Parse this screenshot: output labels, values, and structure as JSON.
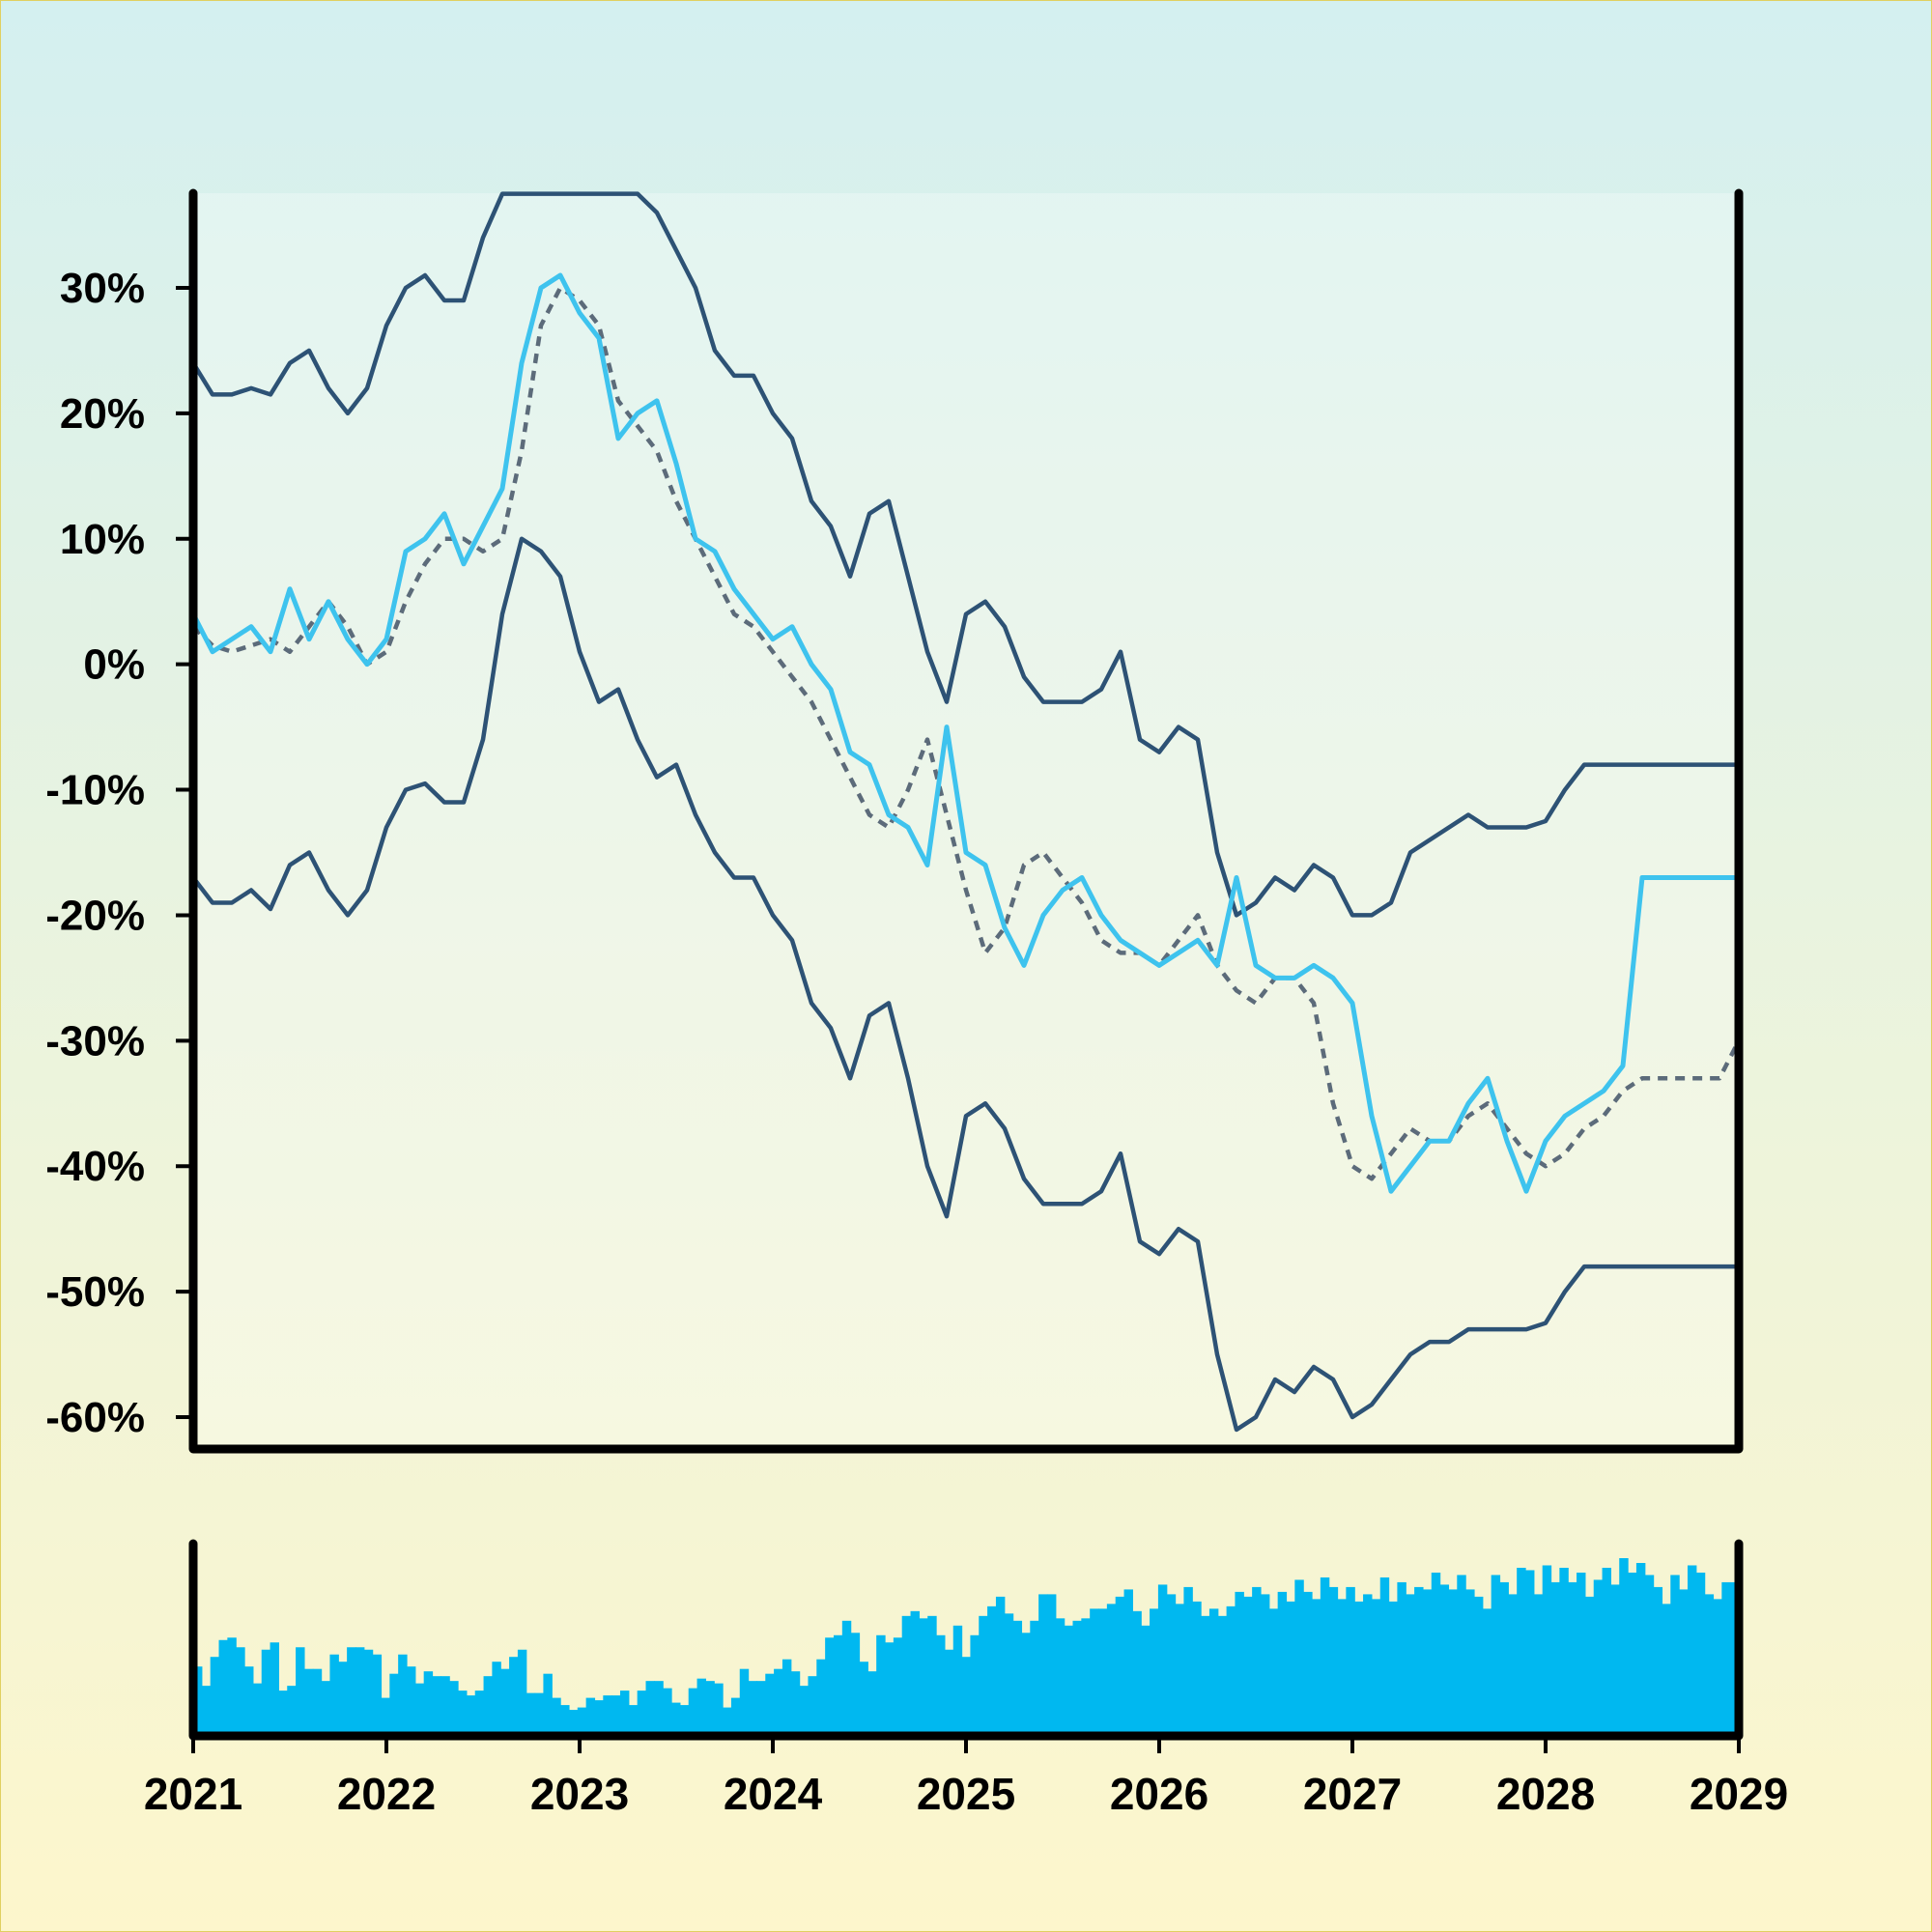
{
  "chart_data": {
    "type": "line",
    "title": "",
    "xlabel": "",
    "ylabel": "",
    "x_ticks": [
      "2021",
      "2022",
      "2023",
      "2024",
      "2025",
      "2026",
      "2027",
      "2028",
      "2029"
    ],
    "y_ticks": [
      "30%",
      "20%",
      "10%",
      "0%",
      "-10%",
      "-20%",
      "-30%",
      "-40%",
      "-50%",
      "-60%"
    ],
    "y_tick_values": [
      30,
      20,
      10,
      0,
      -10,
      -20,
      -30,
      -40,
      -50,
      -60
    ],
    "xlim": [
      2021,
      2029
    ],
    "ylim": [
      -62,
      37.5
    ],
    "grid": false,
    "upper_band_cap": 37.5,
    "series": [
      {
        "role": "price",
        "style": "solid",
        "color": "#3ec3ee",
        "x": [
          2021.0,
          2021.1,
          2021.2,
          2021.3,
          2021.4,
          2021.5,
          2021.6,
          2021.7,
          2021.8,
          2021.9,
          2022.0,
          2022.1,
          2022.2,
          2022.3,
          2022.4,
          2022.5,
          2022.6,
          2022.7,
          2022.8,
          2022.9,
          2023.0,
          2023.1,
          2023.2,
          2023.3,
          2023.4,
          2023.5,
          2023.6,
          2023.7,
          2023.8,
          2023.9,
          2024.0,
          2024.1,
          2024.2,
          2024.3,
          2024.4,
          2024.5,
          2024.6,
          2024.7,
          2024.8,
          2024.9,
          2025.0,
          2025.1,
          2025.2,
          2025.3,
          2025.4,
          2025.5,
          2025.6,
          2025.7,
          2025.8,
          2025.9,
          2026.0,
          2026.1,
          2026.2,
          2026.3,
          2026.4,
          2026.5,
          2026.6,
          2026.7,
          2026.8,
          2026.9,
          2027.0,
          2027.1,
          2027.2,
          2027.3,
          2027.4,
          2027.5,
          2027.6,
          2027.7,
          2027.8,
          2027.9,
          2028.0,
          2028.1,
          2028.2,
          2028.3,
          2028.4,
          2028.5,
          2028.6,
          2028.7,
          2028.8,
          2028.9,
          2029.0
        ],
        "y": [
          4,
          1,
          2,
          3,
          1,
          6,
          2,
          5,
          2,
          0,
          2,
          9,
          10,
          12,
          8,
          11,
          14,
          24,
          30,
          31,
          28,
          26,
          18,
          20,
          21,
          16,
          10,
          9,
          6,
          4,
          2,
          3,
          0,
          -2,
          -7,
          -8,
          -12,
          -13,
          -16,
          -5,
          -15,
          -16,
          -21,
          -24,
          -20,
          -18,
          -17,
          -20,
          -22,
          -23,
          -24,
          -23,
          -22,
          -24,
          -17,
          -24,
          -25,
          -25,
          -24,
          -25,
          -27,
          -36,
          -42,
          -40,
          -38,
          -38,
          -35,
          -33,
          -38,
          -42,
          -38,
          -36,
          -35,
          -34,
          -32,
          -17,
          -17,
          -17,
          -17,
          -17,
          -17
        ]
      },
      {
        "role": "moving-average",
        "style": "dashed",
        "color": "#5c6b7a",
        "x": [
          2021.0,
          2021.1,
          2021.2,
          2021.3,
          2021.4,
          2021.5,
          2021.6,
          2021.7,
          2021.8,
          2021.9,
          2022.0,
          2022.1,
          2022.2,
          2022.3,
          2022.4,
          2022.5,
          2022.6,
          2022.7,
          2022.8,
          2022.9,
          2023.0,
          2023.1,
          2023.2,
          2023.3,
          2023.4,
          2023.5,
          2023.6,
          2023.7,
          2023.8,
          2023.9,
          2024.0,
          2024.1,
          2024.2,
          2024.3,
          2024.4,
          2024.5,
          2024.6,
          2024.7,
          2024.8,
          2024.9,
          2025.0,
          2025.1,
          2025.2,
          2025.3,
          2025.4,
          2025.5,
          2025.6,
          2025.7,
          2025.8,
          2025.9,
          2026.0,
          2026.1,
          2026.2,
          2026.3,
          2026.4,
          2026.5,
          2026.6,
          2026.7,
          2026.8,
          2026.9,
          2027.0,
          2027.1,
          2027.2,
          2027.3,
          2027.4,
          2027.5,
          2027.6,
          2027.7,
          2027.8,
          2027.9,
          2028.0,
          2028.1,
          2028.2,
          2028.3,
          2028.4,
          2028.5,
          2028.6,
          2028.7,
          2028.8,
          2028.9,
          2029.0
        ],
        "y": [
          3,
          1.5,
          1,
          1.5,
          2,
          1,
          3,
          5,
          3,
          0,
          1,
          5,
          8,
          10,
          10,
          9,
          10,
          17,
          27,
          30,
          29,
          27,
          21,
          19,
          17,
          13,
          10,
          7,
          4,
          3,
          1,
          -1,
          -3,
          -6,
          -9,
          -12,
          -13,
          -10,
          -6,
          -12,
          -18,
          -23,
          -21,
          -16,
          -15,
          -17,
          -19,
          -22,
          -23,
          -23,
          -24,
          -22,
          -20,
          -24,
          -26,
          -27,
          -25,
          -25,
          -27,
          -35,
          -40,
          -41,
          -39,
          -37,
          -38,
          -38,
          -36,
          -35,
          -37,
          -39,
          -40,
          -39,
          -37,
          -36,
          -34,
          -33,
          -33,
          -33,
          -33,
          -33,
          -30
        ]
      },
      {
        "role": "upper-band",
        "style": "solid",
        "color": "#2d5275",
        "x": [
          2021.0,
          2021.1,
          2021.2,
          2021.3,
          2021.4,
          2021.5,
          2021.6,
          2021.7,
          2021.8,
          2021.9,
          2022.0,
          2022.1,
          2022.2,
          2022.3,
          2022.4,
          2022.5,
          2022.6,
          2022.7,
          2022.8,
          2022.9,
          2023.0,
          2023.1,
          2023.2,
          2023.3,
          2023.4,
          2023.5,
          2023.6,
          2023.7,
          2023.8,
          2023.9,
          2024.0,
          2024.1,
          2024.2,
          2024.3,
          2024.4,
          2024.5,
          2024.6,
          2024.7,
          2024.8,
          2024.9,
          2025.0,
          2025.1,
          2025.2,
          2025.3,
          2025.4,
          2025.5,
          2025.6,
          2025.7,
          2025.8,
          2025.9,
          2026.0,
          2026.1,
          2026.2,
          2026.3,
          2026.4,
          2026.5,
          2026.6,
          2026.7,
          2026.8,
          2026.9,
          2027.0,
          2027.1,
          2027.2,
          2027.3,
          2027.4,
          2027.5,
          2027.6,
          2027.7,
          2027.8,
          2027.9,
          2028.0,
          2028.1,
          2028.2,
          2028.3,
          2028.4,
          2028.5,
          2028.6,
          2028.7,
          2028.8,
          2028.9,
          2029.0
        ],
        "y": [
          24,
          21.5,
          21.5,
          22,
          21.5,
          24,
          25,
          22,
          20,
          22,
          27,
          30,
          31,
          29,
          29,
          34,
          37.5,
          37.5,
          37.5,
          37.5,
          37.5,
          37.5,
          37.5,
          37.5,
          36,
          33,
          30,
          25,
          23,
          23,
          20,
          18,
          13,
          11,
          7,
          12,
          13,
          7,
          1,
          -3,
          4,
          5,
          3,
          -1,
          -3,
          -3,
          -3,
          -2,
          1,
          -6,
          -7,
          -5,
          -6,
          -15,
          -20,
          -19,
          -17,
          -18,
          -16,
          -17,
          -20,
          -20,
          -19,
          -15,
          -14,
          -13,
          -12,
          -13,
          -13,
          -13,
          -12.5,
          -10,
          -8,
          -8,
          -8,
          -8,
          -8,
          -8,
          -8,
          -8,
          -8
        ]
      },
      {
        "role": "lower-band",
        "style": "solid",
        "color": "#2d5275",
        "x": [
          2021.0,
          2021.1,
          2021.2,
          2021.3,
          2021.4,
          2021.5,
          2021.6,
          2021.7,
          2021.8,
          2021.9,
          2022.0,
          2022.1,
          2022.2,
          2022.3,
          2022.4,
          2022.5,
          2022.6,
          2022.7,
          2022.8,
          2022.9,
          2023.0,
          2023.1,
          2023.2,
          2023.3,
          2023.4,
          2023.5,
          2023.6,
          2023.7,
          2023.8,
          2023.9,
          2024.0,
          2024.1,
          2024.2,
          2024.3,
          2024.4,
          2024.5,
          2024.6,
          2024.7,
          2024.8,
          2024.9,
          2025.0,
          2025.1,
          2025.2,
          2025.3,
          2025.4,
          2025.5,
          2025.6,
          2025.7,
          2025.8,
          2025.9,
          2026.0,
          2026.1,
          2026.2,
          2026.3,
          2026.4,
          2026.5,
          2026.6,
          2026.7,
          2026.8,
          2026.9,
          2027.0,
          2027.1,
          2027.2,
          2027.3,
          2027.4,
          2027.5,
          2027.6,
          2027.7,
          2027.8,
          2027.9,
          2028.0,
          2028.1,
          2028.2,
          2028.3,
          2028.4,
          2028.5,
          2028.6,
          2028.7,
          2028.8,
          2028.9,
          2029.0
        ],
        "y": [
          -17,
          -19,
          -19,
          -18,
          -19.5,
          -16,
          -15,
          -18,
          -20,
          -18,
          -13,
          -10,
          -9.5,
          -11,
          -11,
          -6,
          4,
          10,
          9,
          7,
          1,
          -3,
          -2,
          -6,
          -9,
          -8,
          -12,
          -15,
          -17,
          -17,
          -20,
          -22,
          -27,
          -29,
          -33,
          -28,
          -27,
          -33,
          -40,
          -44,
          -36,
          -35,
          -37,
          -41,
          -43,
          -43,
          -43,
          -42,
          -39,
          -46,
          -47,
          -45,
          -46,
          -55,
          -61,
          -60,
          -57,
          -58,
          -56,
          -57,
          -60,
          -59,
          -57,
          -55,
          -54,
          -54,
          -53,
          -53,
          -53,
          -53,
          -52.5,
          -50,
          -48,
          -48,
          -48,
          -48,
          -48,
          -48,
          -48,
          -48,
          -48
        ]
      }
    ],
    "volume": {
      "type": "bar",
      "color": "#00b8f0",
      "x_start": 2021,
      "x_end": 2029,
      "values": [
        28,
        20,
        32,
        39,
        40,
        36,
        28,
        21,
        35,
        38,
        18,
        20,
        36,
        27,
        27,
        22,
        33,
        30,
        36,
        36,
        35,
        33,
        15,
        25,
        33,
        28,
        21,
        26,
        24,
        24,
        22,
        18,
        16,
        18,
        24,
        30,
        27,
        32,
        35,
        17,
        17,
        25,
        15,
        12,
        10,
        11,
        15,
        14,
        16,
        16,
        18,
        12,
        18,
        22,
        22,
        19,
        13,
        12,
        19,
        23,
        22,
        21,
        11,
        15,
        27,
        22,
        22,
        25,
        27,
        31,
        26,
        20,
        24,
        31,
        40,
        41,
        47,
        42,
        30,
        26,
        41,
        38,
        40,
        49,
        51,
        48,
        49,
        41,
        35,
        45,
        32,
        41,
        49,
        53,
        57,
        50,
        47,
        42,
        47,
        58,
        58,
        48,
        45,
        47,
        48,
        52,
        52,
        54,
        57,
        60,
        51,
        45,
        52,
        62,
        58,
        54,
        61,
        55,
        49,
        52,
        49,
        53,
        59,
        57,
        61,
        58,
        52,
        59,
        55,
        64,
        59,
        56,
        65,
        61,
        56,
        61,
        55,
        58,
        56,
        65,
        55,
        63,
        58,
        61,
        60,
        67,
        62,
        60,
        66,
        60,
        57,
        52,
        66,
        63,
        58,
        69,
        68,
        58,
        70,
        63,
        69,
        63,
        67,
        57,
        64,
        69,
        62,
        73,
        67,
        71,
        66,
        61,
        54,
        66,
        60,
        70,
        67,
        58,
        56,
        63,
        63
      ]
    }
  }
}
